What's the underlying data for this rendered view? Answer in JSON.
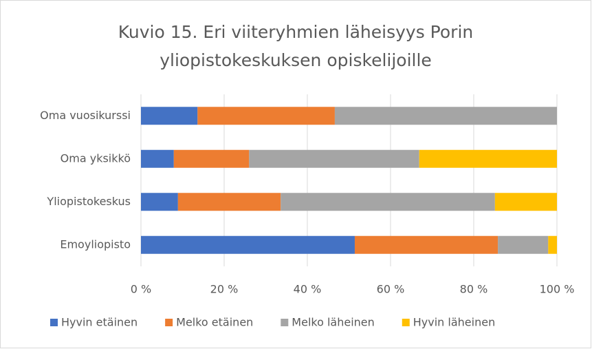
{
  "chart_data": {
    "type": "stacked_barh",
    "title": "Kuvio 15. Eri viiteryhmien läheisyys Porin yliopistokeskuksen opiskelijoille",
    "categories": [
      "Oma vuosikurssi",
      "Oma yksikkö",
      "Yliopistokeskus",
      "Emoyliopisto"
    ],
    "series": [
      {
        "name": "Hyvin etäinen",
        "color": "#4472c4",
        "values": [
          13.6,
          7.9,
          8.9,
          51.4
        ]
      },
      {
        "name": "Melko etäinen",
        "color": "#ed7d31",
        "values": [
          33.0,
          18.1,
          24.7,
          34.4
        ]
      },
      {
        "name": "Melko läheinen",
        "color": "#a5a5a5",
        "values": [
          53.4,
          40.9,
          51.5,
          12.1
        ]
      },
      {
        "name": "Hyvin läheinen",
        "color": "#ffc000",
        "values": [
          0,
          33.1,
          14.9,
          2.1
        ]
      }
    ],
    "xlim": [
      0,
      100
    ],
    "xticks": [
      {
        "value": 0,
        "label": "0 %"
      },
      {
        "value": 20,
        "label": "20 %"
      },
      {
        "value": 40,
        "label": "40 %"
      },
      {
        "value": 60,
        "label": "60 %"
      },
      {
        "value": 80,
        "label": "80 %"
      },
      {
        "value": 100,
        "label": "100 %"
      }
    ],
    "grid": true,
    "legend": "bottom"
  }
}
